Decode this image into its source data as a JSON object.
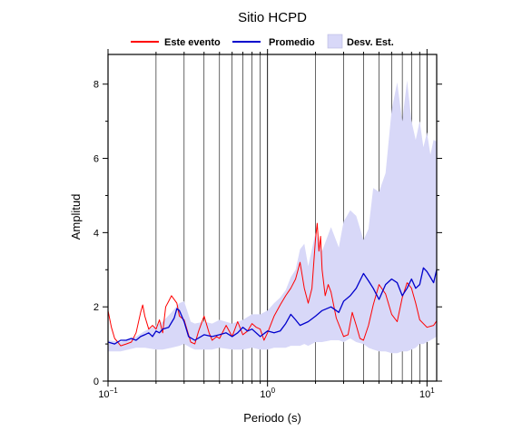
{
  "chart_data": {
    "type": "line",
    "title": "Sitio HCPD",
    "xlabel": "Periodo (s)",
    "ylabel": "Amplitud",
    "xscale": "log",
    "xlim": [
      0.1,
      11.5
    ],
    "ylim": [
      0,
      8.8
    ],
    "x_ticks": [
      {
        "value": 0.1,
        "base": "10",
        "exp": "−1"
      },
      {
        "value": 1,
        "base": "10",
        "exp": "0"
      },
      {
        "value": 10,
        "base": "10",
        "exp": "1"
      }
    ],
    "y_ticks": [
      0,
      2,
      4,
      6,
      8
    ],
    "grid": "vertical-log",
    "legend_position": "top",
    "legend": [
      {
        "label": "Este evento",
        "kind": "line",
        "color": "#ff0000"
      },
      {
        "label": "Promedio",
        "kind": "line",
        "color": "#0000cc"
      },
      {
        "label": "Desv. Est.",
        "kind": "band",
        "color": "#d8d8f8"
      }
    ],
    "series": [
      {
        "name": "Este evento",
        "color": "#ff0000",
        "x": [
          0.1,
          0.105,
          0.11,
          0.115,
          0.12,
          0.13,
          0.14,
          0.15,
          0.16,
          0.165,
          0.17,
          0.18,
          0.19,
          0.2,
          0.21,
          0.22,
          0.23,
          0.24,
          0.25,
          0.27,
          0.28,
          0.3,
          0.32,
          0.33,
          0.35,
          0.37,
          0.4,
          0.43,
          0.45,
          0.48,
          0.5,
          0.55,
          0.6,
          0.65,
          0.7,
          0.75,
          0.8,
          0.85,
          0.9,
          0.95,
          1.0,
          1.1,
          1.2,
          1.3,
          1.4,
          1.5,
          1.6,
          1.7,
          1.8,
          1.9,
          2.0,
          2.05,
          2.1,
          2.15,
          2.2,
          2.3,
          2.4,
          2.5,
          2.7,
          3.0,
          3.2,
          3.4,
          3.6,
          3.8,
          4.0,
          4.3,
          4.6,
          5.0,
          5.5,
          6.0,
          6.5,
          7.0,
          7.5,
          8.0,
          8.5,
          9.0,
          10.0,
          11.0,
          11.5
        ],
        "y": [
          1.9,
          1.45,
          1.15,
          1.05,
          0.95,
          1.0,
          1.05,
          1.3,
          1.85,
          2.05,
          1.75,
          1.4,
          1.5,
          1.4,
          1.65,
          1.3,
          2.0,
          2.15,
          2.3,
          2.1,
          1.75,
          1.65,
          1.25,
          1.05,
          1.0,
          1.35,
          1.75,
          1.3,
          1.1,
          1.2,
          1.15,
          1.5,
          1.2,
          1.6,
          1.25,
          1.35,
          1.55,
          1.45,
          1.4,
          1.1,
          1.3,
          1.75,
          2.05,
          2.3,
          2.5,
          2.75,
          3.2,
          2.5,
          2.1,
          2.5,
          3.85,
          4.25,
          3.5,
          3.9,
          3.0,
          2.3,
          2.6,
          2.4,
          1.7,
          1.2,
          1.25,
          1.85,
          1.5,
          1.15,
          1.1,
          1.5,
          2.05,
          2.6,
          2.35,
          1.8,
          1.6,
          2.25,
          2.65,
          2.5,
          2.1,
          1.65,
          1.45,
          1.5,
          1.62
        ]
      },
      {
        "name": "Promedio",
        "color": "#0000cc",
        "x": [
          0.1,
          0.11,
          0.12,
          0.13,
          0.14,
          0.15,
          0.16,
          0.17,
          0.18,
          0.19,
          0.2,
          0.21,
          0.22,
          0.24,
          0.26,
          0.27,
          0.28,
          0.3,
          0.32,
          0.35,
          0.4,
          0.45,
          0.5,
          0.55,
          0.6,
          0.65,
          0.7,
          0.75,
          0.8,
          0.9,
          1.0,
          1.1,
          1.2,
          1.3,
          1.4,
          1.5,
          1.6,
          1.8,
          2.0,
          2.2,
          2.5,
          2.8,
          3.0,
          3.3,
          3.6,
          4.0,
          4.3,
          4.6,
          5.0,
          5.5,
          6.0,
          6.5,
          7.0,
          7.5,
          8.0,
          8.5,
          9.0,
          9.5,
          10.0,
          10.5,
          11.0,
          11.5
        ],
        "y": [
          1.05,
          1.0,
          1.1,
          1.1,
          1.15,
          1.1,
          1.2,
          1.25,
          1.3,
          1.2,
          1.35,
          1.3,
          1.4,
          1.45,
          1.7,
          1.95,
          1.9,
          1.6,
          1.2,
          1.1,
          1.25,
          1.2,
          1.25,
          1.3,
          1.2,
          1.3,
          1.45,
          1.35,
          1.4,
          1.2,
          1.35,
          1.3,
          1.35,
          1.55,
          1.8,
          1.65,
          1.5,
          1.6,
          1.75,
          1.9,
          2.0,
          1.85,
          2.15,
          2.3,
          2.5,
          2.9,
          2.7,
          2.5,
          2.2,
          2.6,
          2.75,
          2.65,
          2.3,
          2.5,
          2.75,
          2.5,
          2.6,
          3.05,
          2.95,
          2.8,
          2.65,
          3.0
        ]
      }
    ],
    "band": {
      "name": "Desv. Est.",
      "color": "#d8d8f8",
      "x": [
        0.1,
        0.12,
        0.15,
        0.17,
        0.2,
        0.22,
        0.25,
        0.28,
        0.3,
        0.33,
        0.35,
        0.4,
        0.45,
        0.5,
        0.6,
        0.7,
        0.8,
        0.9,
        1.0,
        1.1,
        1.2,
        1.3,
        1.4,
        1.5,
        1.6,
        1.7,
        1.8,
        2.0,
        2.2,
        2.5,
        2.8,
        3.0,
        3.3,
        3.6,
        4.0,
        4.3,
        4.6,
        5.0,
        5.5,
        6.0,
        6.5,
        7.0,
        7.5,
        8.0,
        8.5,
        9.0,
        9.5,
        10.0,
        10.5,
        11.0,
        11.5
      ],
      "upper": [
        1.1,
        1.05,
        1.2,
        1.35,
        1.5,
        1.6,
        1.85,
        2.1,
        2.15,
        1.6,
        1.55,
        1.6,
        1.55,
        1.65,
        1.55,
        1.65,
        1.8,
        1.8,
        1.9,
        2.1,
        2.25,
        2.45,
        2.8,
        3.0,
        3.55,
        3.7,
        3.1,
        4.0,
        3.5,
        4.15,
        3.6,
        4.3,
        4.6,
        4.45,
        3.8,
        4.1,
        5.2,
        5.1,
        5.6,
        7.3,
        8.05,
        7.0,
        8.1,
        7.0,
        6.5,
        7.0,
        6.3,
        6.7,
        6.1,
        6.5,
        6.45
      ],
      "lower": [
        0.8,
        0.8,
        0.9,
        0.9,
        0.85,
        0.85,
        0.9,
        0.95,
        1.0,
        0.9,
        0.85,
        0.85,
        0.85,
        0.9,
        0.85,
        0.85,
        0.9,
        0.85,
        0.85,
        0.9,
        0.9,
        0.9,
        0.95,
        0.95,
        0.95,
        1.0,
        0.95,
        1.05,
        1.05,
        1.1,
        1.1,
        1.05,
        1.15,
        1.05,
        1.0,
        0.9,
        0.85,
        0.8,
        0.8,
        0.75,
        0.75,
        0.8,
        0.8,
        0.85,
        0.9,
        1.0,
        1.0,
        1.05,
        1.1,
        1.15,
        1.2
      ]
    }
  }
}
